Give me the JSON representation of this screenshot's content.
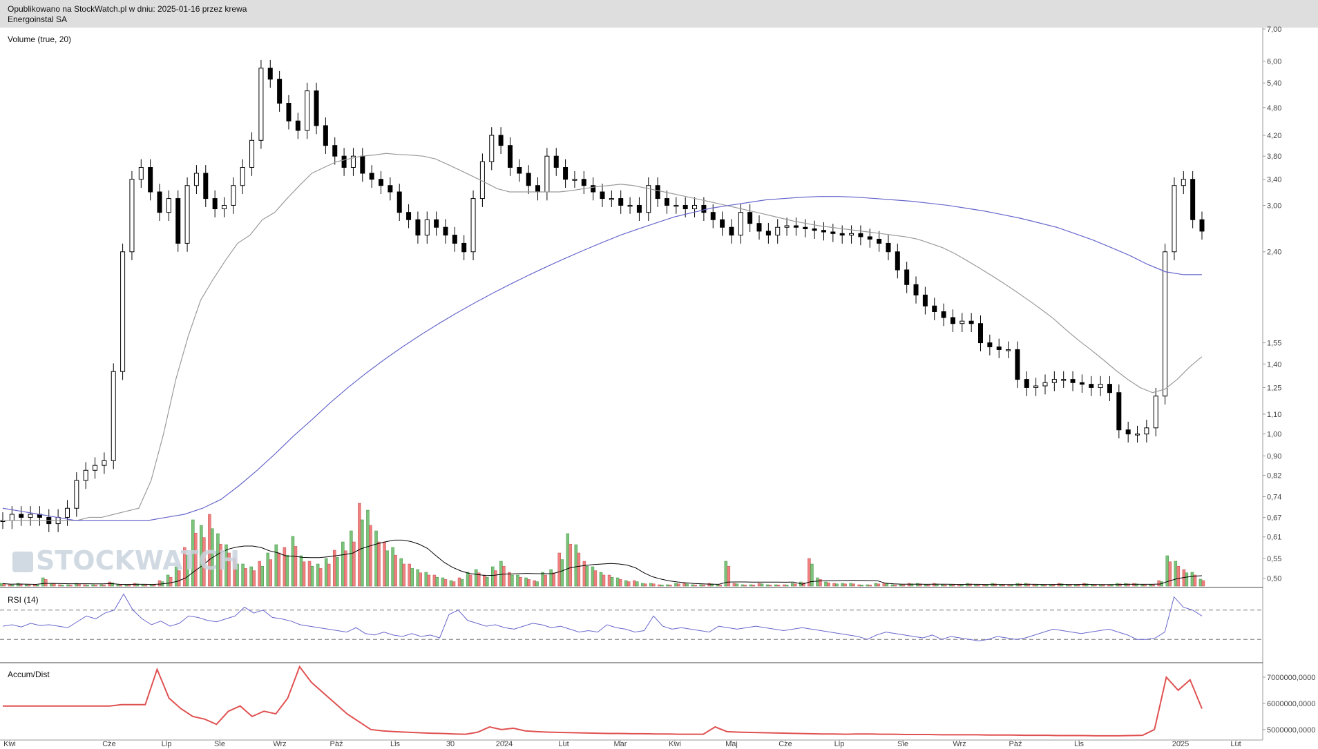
{
  "header": {
    "published": "Opublikowano na StockWatch.pl w dniu: 2025-01-16 przez krewa",
    "company": "Energoinstal SA"
  },
  "watermark": {
    "text": "STOCKWATCH",
    "icon": "bar-chart-logo-icon"
  },
  "colors": {
    "up_bar": "#7cc47c",
    "down_bar": "#f08080",
    "candle": "#000000",
    "ma_short": "#9a9a9a",
    "ma_long": "#6666cc",
    "rsi_line": "#6666cc",
    "accum_line": "#e05050",
    "volume_avg": "#000000"
  },
  "chart_data": [
    {
      "panel": "price",
      "type": "candlestick",
      "title": "Volume (true, 20)",
      "scale": "log",
      "ylim": [
        0.48,
        7.0
      ],
      "y_ticks": [
        "7,00",
        "6,00",
        "5,40",
        "4,80",
        "4,20",
        "3,80",
        "3,40",
        "3,00",
        "2,40",
        "1,55",
        "1,40",
        "1,25",
        "1,10",
        "1,00",
        "0,90",
        "0,82",
        "0,74",
        "0,67",
        "0,61",
        "0,55",
        "0,50"
      ],
      "x_ticks": [
        "Kwi",
        "Cze",
        "Lip",
        "Sie",
        "Wrz",
        "Paź",
        "Lis",
        "30",
        "2024",
        "Lut",
        "Mar",
        "Kwi",
        "Maj",
        "Cze",
        "Lip",
        "Sie",
        "Wrz",
        "Paź",
        "Lis",
        "2025",
        "Lut"
      ],
      "close": [
        0.66,
        0.68,
        0.67,
        0.68,
        0.67,
        0.65,
        0.67,
        0.7,
        0.8,
        0.84,
        0.86,
        0.88,
        1.35,
        2.4,
        3.4,
        3.6,
        3.2,
        2.9,
        3.1,
        2.5,
        3.3,
        3.5,
        3.1,
        2.95,
        3.0,
        3.3,
        3.6,
        4.1,
        5.8,
        5.5,
        4.9,
        4.5,
        4.3,
        5.2,
        4.4,
        4.0,
        3.8,
        3.6,
        3.8,
        3.5,
        3.4,
        3.3,
        3.2,
        2.9,
        2.8,
        2.6,
        2.8,
        2.7,
        2.6,
        2.5,
        2.4,
        3.1,
        3.7,
        4.2,
        4.0,
        3.6,
        3.5,
        3.3,
        3.2,
        3.8,
        3.6,
        3.4,
        3.4,
        3.3,
        3.2,
        3.1,
        3.1,
        3.0,
        3.0,
        2.9,
        3.3,
        3.1,
        3.0,
        3.0,
        2.95,
        3.0,
        2.9,
        2.8,
        2.7,
        2.6,
        2.9,
        2.75,
        2.65,
        2.6,
        2.7,
        2.72,
        2.7,
        2.68,
        2.66,
        2.64,
        2.62,
        2.6,
        2.62,
        2.58,
        2.55,
        2.5,
        2.4,
        2.2,
        2.05,
        1.95,
        1.85,
        1.8,
        1.75,
        1.7,
        1.72,
        1.7,
        1.55,
        1.52,
        1.5,
        1.5,
        1.3,
        1.25,
        1.26,
        1.28,
        1.3,
        1.3,
        1.28,
        1.27,
        1.25,
        1.27,
        1.22,
        1.02,
        1.0,
        1.0,
        1.03,
        1.2,
        2.4,
        3.3,
        3.4,
        2.8,
        2.65
      ],
      "ma_short": [
        0.66,
        0.66,
        0.66,
        0.66,
        0.66,
        0.66,
        0.66,
        0.67,
        0.67,
        0.68,
        0.69,
        0.7,
        0.8,
        1.0,
        1.3,
        1.6,
        1.9,
        2.1,
        2.3,
        2.5,
        2.6,
        2.8,
        2.9,
        3.1,
        3.3,
        3.5,
        3.6,
        3.7,
        3.75,
        3.8,
        3.82,
        3.85,
        3.83,
        3.82,
        3.8,
        3.75,
        3.65,
        3.55,
        3.45,
        3.35,
        3.25,
        3.2,
        3.2,
        3.2,
        3.2,
        3.2,
        3.22,
        3.25,
        3.28,
        3.3,
        3.32,
        3.3,
        3.26,
        3.22,
        3.18,
        3.14,
        3.1,
        3.06,
        3.02,
        2.98,
        2.94,
        2.9,
        2.86,
        2.82,
        2.78,
        2.75,
        2.72,
        2.7,
        2.68,
        2.66,
        2.64,
        2.62,
        2.6,
        2.58,
        2.55,
        2.5,
        2.45,
        2.38,
        2.3,
        2.22,
        2.14,
        2.06,
        1.98,
        1.9,
        1.82,
        1.74,
        1.65,
        1.57,
        1.5,
        1.43,
        1.36,
        1.3,
        1.25,
        1.22,
        1.24,
        1.3,
        1.38,
        1.45
      ],
      "ma_long": [
        0.7,
        0.69,
        0.68,
        0.67,
        0.66,
        0.66,
        0.66,
        0.66,
        0.66,
        0.67,
        0.68,
        0.7,
        0.73,
        0.78,
        0.84,
        0.91,
        0.99,
        1.07,
        1.16,
        1.25,
        1.34,
        1.43,
        1.52,
        1.61,
        1.7,
        1.79,
        1.88,
        1.97,
        2.06,
        2.15,
        2.24,
        2.33,
        2.42,
        2.51,
        2.6,
        2.68,
        2.76,
        2.84,
        2.9,
        2.96,
        3.0,
        3.04,
        3.08,
        3.1,
        3.12,
        3.13,
        3.13,
        3.12,
        3.1,
        3.08,
        3.06,
        3.03,
        3.0,
        2.96,
        2.92,
        2.87,
        2.82,
        2.76,
        2.7,
        2.62,
        2.54,
        2.45,
        2.36,
        2.26,
        2.18,
        2.15,
        2.15
      ]
    },
    {
      "panel": "volume",
      "type": "bar",
      "series_avg_name": "Volume (true, 20)",
      "values": [
        2,
        1,
        2,
        1,
        1,
        6,
        2,
        1,
        1,
        2,
        1,
        1,
        1,
        3,
        1,
        1,
        2,
        1,
        1,
        4,
        8,
        14,
        28,
        48,
        44,
        52,
        38,
        30,
        20,
        16,
        14,
        18,
        24,
        30,
        28,
        36,
        22,
        18,
        16,
        20,
        26,
        32,
        40,
        60,
        55,
        40,
        32,
        28,
        20,
        16,
        12,
        10,
        8,
        6,
        4,
        6,
        10,
        12,
        8,
        14,
        18,
        10,
        8,
        6,
        4,
        10,
        12,
        24,
        38,
        30,
        18,
        14,
        10,
        8,
        6,
        4,
        4,
        2,
        2,
        1,
        1,
        2,
        2,
        1,
        1,
        2,
        1,
        18,
        2,
        1,
        1,
        2,
        1,
        1,
        1,
        2,
        3,
        20,
        6,
        3,
        2,
        2,
        2,
        1,
        1,
        2,
        2,
        1,
        1,
        2,
        2,
        1,
        2,
        1,
        1,
        1,
        2,
        1,
        1,
        2,
        1,
        1,
        2,
        2,
        1,
        1,
        1,
        2,
        1,
        1,
        2,
        1,
        1,
        1,
        2,
        2,
        2,
        1,
        1,
        4,
        22,
        18,
        12,
        10,
        5
      ],
      "ylim": [
        0,
        100
      ]
    },
    {
      "panel": "rsi",
      "type": "line",
      "title": "RSI (14)",
      "ylim": [
        0,
        100
      ],
      "levels": [
        70,
        30
      ],
      "values": [
        48,
        50,
        47,
        52,
        49,
        50,
        48,
        46,
        54,
        62,
        58,
        66,
        70,
        92,
        70,
        58,
        50,
        55,
        48,
        52,
        62,
        60,
        56,
        54,
        58,
        62,
        74,
        66,
        70,
        60,
        58,
        55,
        50,
        48,
        46,
        44,
        42,
        40,
        46,
        38,
        36,
        40,
        36,
        34,
        38,
        34,
        36,
        32,
        64,
        70,
        56,
        52,
        48,
        50,
        46,
        44,
        48,
        52,
        50,
        46,
        48,
        44,
        40,
        42,
        40,
        50,
        46,
        44,
        40,
        42,
        62,
        48,
        44,
        46,
        44,
        42,
        40,
        48,
        46,
        44,
        46,
        48,
        46,
        44,
        42,
        44,
        46,
        44,
        42,
        40,
        38,
        36,
        34,
        30,
        36,
        40,
        38,
        36,
        34,
        32,
        36,
        30,
        34,
        32,
        30,
        28,
        30,
        34,
        32,
        30,
        32,
        36,
        40,
        44,
        42,
        40,
        38,
        40,
        42,
        44,
        40,
        36,
        30,
        30,
        32,
        40,
        88,
        74,
        70,
        62
      ],
      "x_count": 135
    },
    {
      "panel": "accum",
      "type": "line",
      "title": "Accum/Dist",
      "ylim": [
        4600000000,
        7500000000
      ],
      "y_ticks": [
        "7000000,0000",
        "6000000,0000",
        "5000000,0000"
      ],
      "values": [
        5900000000,
        5900000000,
        5900000000,
        5900000000,
        5900000000,
        5900000000,
        5900000000,
        5900000000,
        5900000000,
        5900000000,
        5950000000,
        5950000000,
        5950000000,
        7300000000,
        6200000000,
        5800000000,
        5500000000,
        5400000000,
        5200000000,
        5700000000,
        5900000000,
        5500000000,
        5700000000,
        5600000000,
        6200000000,
        7400000000,
        6800000000,
        6400000000,
        6000000000,
        5600000000,
        5300000000,
        5000000000,
        4950000000,
        4920000000,
        4900000000,
        4880000000,
        4860000000,
        4850000000,
        4830000000,
        4820000000,
        4900000000,
        5100000000,
        5000000000,
        5050000000,
        4950000000,
        4920000000,
        4900000000,
        4890000000,
        4880000000,
        4870000000,
        4860000000,
        4850000000,
        4850000000,
        4840000000,
        4840000000,
        4830000000,
        4830000000,
        4820000000,
        4820000000,
        4820000000,
        5100000000,
        4920000000,
        4900000000,
        4890000000,
        4880000000,
        4870000000,
        4860000000,
        4850000000,
        4840000000,
        4830000000,
        4830000000,
        4820000000,
        4830000000,
        4830000000,
        4820000000,
        4820000000,
        4810000000,
        4810000000,
        4810000000,
        4800000000,
        4800000000,
        4800000000,
        4800000000,
        4790000000,
        4790000000,
        4790000000,
        4780000000,
        4780000000,
        4780000000,
        4770000000,
        4770000000,
        4770000000,
        4760000000,
        4760000000,
        4760000000,
        4770000000,
        4780000000,
        5000000000,
        7000000000,
        6500000000,
        6900000000,
        5800000000
      ]
    }
  ]
}
